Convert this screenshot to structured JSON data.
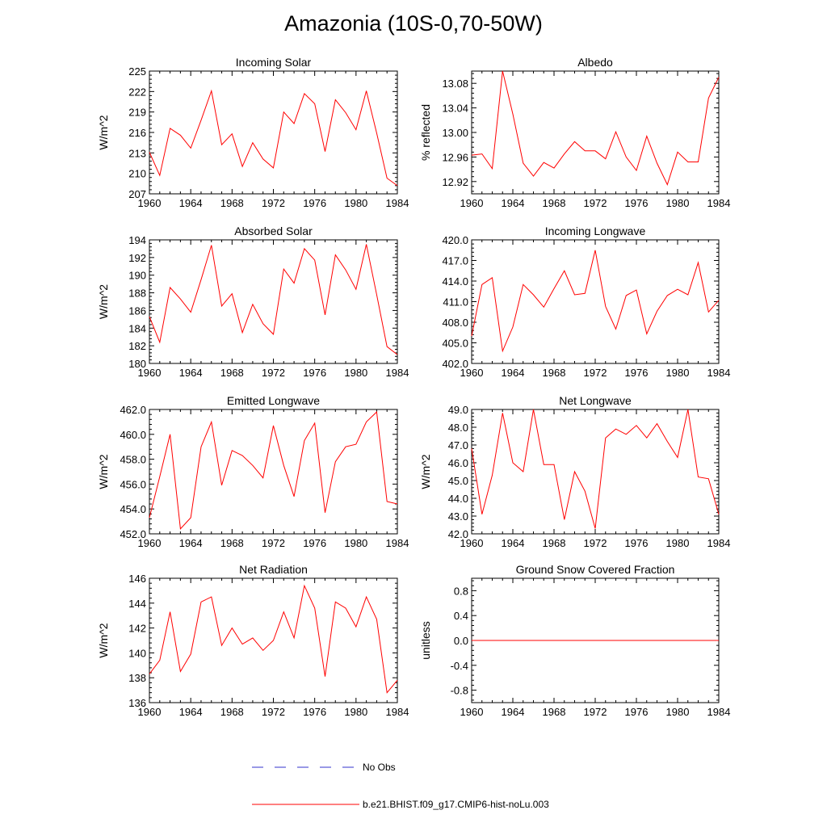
{
  "figure": {
    "title": "Amazonia (10S-0,70-50W)"
  },
  "colors": {
    "model_line": "#ff0000",
    "obs_line": "#3333cc",
    "axis": "#000000"
  },
  "legend": {
    "entries": [
      {
        "label": "No Obs",
        "style": "dashed",
        "color": "#3333cc"
      },
      {
        "label": "b.e21.BHIST.f09_g17.CMIP6-hist-noLu.003",
        "style": "solid",
        "color": "#ff0000"
      }
    ]
  },
  "chart_data": [
    {
      "type": "line",
      "title": "Incoming Solar",
      "ylabel": "W/m^2",
      "xlim": [
        1960,
        1984
      ],
      "ylim": [
        207,
        225
      ],
      "x_ticks": [
        1960,
        1964,
        1968,
        1972,
        1976,
        1980,
        1984
      ],
      "y_ticks": [
        207,
        210,
        213,
        216,
        219,
        222,
        225
      ],
      "y_tick_labels": [
        "207",
        "210",
        "213",
        "216",
        "219",
        "222",
        "225"
      ],
      "series": [
        {
          "x": [
            1960,
            1961,
            1962,
            1963,
            1964,
            1965,
            1966,
            1967,
            1968,
            1969,
            1970,
            1971,
            1972,
            1973,
            1974,
            1975,
            1976,
            1977,
            1978,
            1979,
            1980,
            1981,
            1982,
            1983,
            1984
          ],
          "values": [
            213.1,
            209.7,
            216.6,
            215.6,
            213.7,
            217.8,
            222.1,
            214.2,
            215.8,
            211.0,
            214.5,
            212.1,
            210.8,
            219.0,
            217.3,
            221.7,
            220.2,
            213.2,
            220.8,
            218.9,
            216.4,
            222.1,
            215.9,
            209.3,
            208.2
          ]
        }
      ]
    },
    {
      "type": "line",
      "title": "Albedo",
      "ylabel": "% reflected",
      "xlim": [
        1960,
        1984
      ],
      "ylim": [
        12.9,
        13.1
      ],
      "x_ticks": [
        1960,
        1964,
        1968,
        1972,
        1976,
        1980,
        1984
      ],
      "y_ticks": [
        12.92,
        12.96,
        13.0,
        13.04,
        13.08
      ],
      "y_tick_labels": [
        "12.92",
        "12.96",
        "13.00",
        "13.04",
        "13.08"
      ],
      "series": [
        {
          "x": [
            1960,
            1961,
            1962,
            1963,
            1964,
            1965,
            1966,
            1967,
            1968,
            1969,
            1970,
            1971,
            1972,
            1973,
            1974,
            1975,
            1976,
            1977,
            1978,
            1979,
            1980,
            1981,
            1982,
            1983,
            1984
          ],
          "values": [
            12.963,
            12.965,
            12.941,
            13.1,
            13.03,
            12.95,
            12.929,
            12.951,
            12.942,
            12.965,
            12.985,
            12.97,
            12.97,
            12.957,
            13.001,
            12.96,
            12.938,
            12.994,
            12.95,
            12.915,
            12.968,
            12.952,
            12.952,
            13.056,
            13.09
          ]
        }
      ]
    },
    {
      "type": "line",
      "title": "Absorbed Solar",
      "ylabel": "W/m^2",
      "xlim": [
        1960,
        1984
      ],
      "ylim": [
        180,
        194
      ],
      "x_ticks": [
        1960,
        1964,
        1968,
        1972,
        1976,
        1980,
        1984
      ],
      "y_ticks": [
        180,
        182,
        184,
        186,
        188,
        190,
        192,
        194
      ],
      "y_tick_labels": [
        "180",
        "182",
        "184",
        "186",
        "188",
        "190",
        "192",
        "194"
      ],
      "series": [
        {
          "x": [
            1960,
            1961,
            1962,
            1963,
            1964,
            1965,
            1966,
            1967,
            1968,
            1969,
            1970,
            1971,
            1972,
            1973,
            1974,
            1975,
            1976,
            1977,
            1978,
            1979,
            1980,
            1981,
            1982,
            1983,
            1984
          ],
          "values": [
            185.3,
            182.4,
            188.6,
            187.3,
            185.8,
            189.5,
            193.4,
            186.5,
            187.9,
            183.5,
            186.7,
            184.5,
            183.3,
            190.7,
            189.1,
            193.0,
            191.7,
            185.5,
            192.3,
            190.6,
            188.4,
            193.5,
            187.8,
            181.9,
            181.0
          ]
        }
      ]
    },
    {
      "type": "line",
      "title": "Incoming Longwave",
      "ylabel": "",
      "xlim": [
        1960,
        1984
      ],
      "ylim": [
        402,
        420
      ],
      "x_ticks": [
        1960,
        1964,
        1968,
        1972,
        1976,
        1980,
        1984
      ],
      "y_ticks": [
        402,
        405,
        408,
        411,
        414,
        417,
        420
      ],
      "y_tick_labels": [
        "402.0",
        "405.0",
        "408.0",
        "411.0",
        "414.0",
        "417.0",
        "420.0"
      ],
      "series": [
        {
          "x": [
            1960,
            1961,
            1962,
            1963,
            1964,
            1965,
            1966,
            1967,
            1968,
            1969,
            1970,
            1971,
            1972,
            1973,
            1974,
            1975,
            1976,
            1977,
            1978,
            1979,
            1980,
            1981,
            1982,
            1983,
            1984
          ],
          "values": [
            406.0,
            413.5,
            414.5,
            403.8,
            407.3,
            413.5,
            412.0,
            410.2,
            412.9,
            415.5,
            412.0,
            412.2,
            418.5,
            410.3,
            407.0,
            411.9,
            412.7,
            406.3,
            409.6,
            411.9,
            412.8,
            412.0,
            416.7,
            409.5,
            411.2
          ]
        }
      ]
    },
    {
      "type": "line",
      "title": "Emitted Longwave",
      "ylabel": "W/m^2",
      "xlim": [
        1960,
        1984
      ],
      "ylim": [
        452,
        462
      ],
      "x_ticks": [
        1960,
        1964,
        1968,
        1972,
        1976,
        1980,
        1984
      ],
      "y_ticks": [
        452,
        454,
        456,
        458,
        460,
        462
      ],
      "y_tick_labels": [
        "452.0",
        "454.0",
        "456.0",
        "458.0",
        "460.0",
        "462.0"
      ],
      "series": [
        {
          "x": [
            1960,
            1961,
            1962,
            1963,
            1964,
            1965,
            1966,
            1967,
            1968,
            1969,
            1970,
            1971,
            1972,
            1973,
            1974,
            1975,
            1976,
            1977,
            1978,
            1979,
            1980,
            1981,
            1982,
            1983,
            1984
          ],
          "values": [
            453.3,
            456.6,
            460.0,
            452.4,
            453.3,
            459.0,
            461.0,
            455.9,
            458.7,
            458.3,
            457.5,
            456.5,
            460.7,
            457.5,
            455.0,
            459.5,
            460.9,
            453.7,
            457.8,
            459.0,
            459.2,
            461.0,
            461.8,
            454.6,
            454.4
          ]
        }
      ]
    },
    {
      "type": "line",
      "title": "Net Longwave",
      "ylabel": "W/m^2",
      "xlim": [
        1960,
        1984
      ],
      "ylim": [
        42,
        49
      ],
      "x_ticks": [
        1960,
        1964,
        1968,
        1972,
        1976,
        1980,
        1984
      ],
      "y_ticks": [
        42,
        43,
        44,
        45,
        46,
        47,
        48,
        49
      ],
      "y_tick_labels": [
        "42.0",
        "43.0",
        "44.0",
        "45.0",
        "46.0",
        "47.0",
        "48.0",
        "49.0"
      ],
      "series": [
        {
          "x": [
            1960,
            1961,
            1962,
            1963,
            1964,
            1965,
            1966,
            1967,
            1968,
            1969,
            1970,
            1971,
            1972,
            1973,
            1974,
            1975,
            1976,
            1977,
            1978,
            1979,
            1980,
            1981,
            1982,
            1983,
            1984
          ],
          "values": [
            46.8,
            43.1,
            45.3,
            48.8,
            46.0,
            45.5,
            49.0,
            45.9,
            45.9,
            42.8,
            45.5,
            44.4,
            42.3,
            47.4,
            47.9,
            47.6,
            48.1,
            47.4,
            48.2,
            47.2,
            46.3,
            49.0,
            45.2,
            45.1,
            43.1
          ]
        }
      ]
    },
    {
      "type": "line",
      "title": "Net Radiation",
      "ylabel": "W/m^2",
      "xlim": [
        1960,
        1984
      ],
      "ylim": [
        136,
        146
      ],
      "x_ticks": [
        1960,
        1964,
        1968,
        1972,
        1976,
        1980,
        1984
      ],
      "y_ticks": [
        136,
        138,
        140,
        142,
        144,
        146
      ],
      "y_tick_labels": [
        "136",
        "138",
        "140",
        "142",
        "144",
        "146"
      ],
      "series": [
        {
          "x": [
            1960,
            1961,
            1962,
            1963,
            1964,
            1965,
            1966,
            1967,
            1968,
            1969,
            1970,
            1971,
            1972,
            1973,
            1974,
            1975,
            1976,
            1977,
            1978,
            1979,
            1980,
            1981,
            1982,
            1983,
            1984
          ],
          "values": [
            138.3,
            139.4,
            143.3,
            138.5,
            139.9,
            144.1,
            144.5,
            140.6,
            142.0,
            140.7,
            141.2,
            140.2,
            141.0,
            143.3,
            141.2,
            145.4,
            143.6,
            138.1,
            144.1,
            143.6,
            142.1,
            144.5,
            142.7,
            136.8,
            137.8
          ]
        }
      ]
    },
    {
      "type": "line",
      "title": "Ground Snow Covered Fraction",
      "ylabel": "unitless",
      "xlim": [
        1960,
        1984
      ],
      "ylim": [
        -1,
        1
      ],
      "x_ticks": [
        1960,
        1964,
        1968,
        1972,
        1976,
        1980,
        1984
      ],
      "y_ticks": [
        -0.8,
        -0.4,
        0.0,
        0.4,
        0.8
      ],
      "y_tick_labels": [
        "-0.8",
        "-0.4",
        "0.0",
        "0.4",
        "0.8"
      ],
      "series": [
        {
          "x": [
            1960,
            1984
          ],
          "values": [
            0,
            0
          ]
        }
      ]
    }
  ]
}
